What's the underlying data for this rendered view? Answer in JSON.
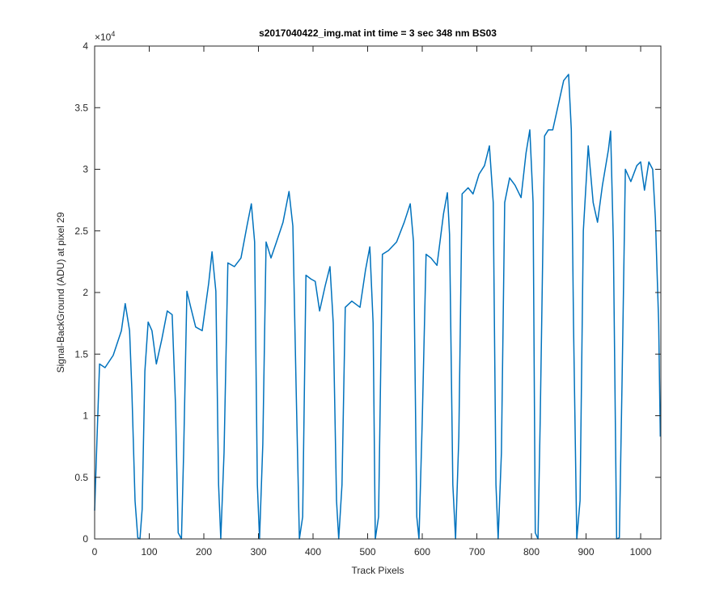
{
  "chart_data": {
    "type": "line",
    "title": "s2017040422_img.mat int time = 3 sec  348 nm BS03",
    "xlabel": "Track Pixels",
    "ylabel": "Signal-BackGround (ADU) at pixel 29",
    "y_exponent_base": "×10",
    "y_exponent": "4",
    "xlim": [
      0,
      1037
    ],
    "ylim": [
      0,
      4
    ],
    "xticks": [
      0,
      100,
      200,
      300,
      400,
      500,
      600,
      700,
      800,
      900,
      1000
    ],
    "yticks": [
      0,
      0.5,
      1,
      1.5,
      2,
      2.5,
      3,
      3.5,
      4
    ],
    "grid": false,
    "box": true,
    "series": [
      {
        "color": "#0072bd",
        "x": [
          0,
          4,
          9,
          19,
          34,
          49,
          56,
          64,
          68,
          74,
          79,
          83,
          87,
          92,
          98,
          105,
          113,
          123,
          133,
          142,
          148,
          153,
          159,
          163,
          169,
          176,
          185,
          197,
          209,
          215,
          222,
          227,
          231,
          237,
          244,
          256,
          268,
          279,
          287,
          293,
          298,
          302,
          308,
          314,
          323,
          333,
          345,
          356,
          363,
          369,
          375,
          381,
          387,
          396,
          404,
          412,
          422,
          431,
          437,
          443,
          447,
          453,
          459,
          471,
          486,
          496,
          504,
          510,
          514,
          520,
          527,
          538,
          553,
          567,
          578,
          584,
          590,
          594,
          600,
          607,
          616,
          627,
          639,
          646,
          650,
          656,
          661,
          667,
          673,
          684,
          693,
          704,
          714,
          723,
          730,
          735,
          739,
          745,
          751,
          760,
          770,
          781,
          790,
          797,
          803,
          807,
          812,
          816,
          824,
          831,
          839,
          849,
          859,
          868,
          873,
          877,
          883,
          889,
          895,
          904,
          913,
          921,
          930,
          941,
          945,
          950,
          956,
          961,
          966,
          972,
          982,
          993,
          1000,
          1007,
          1015,
          1022,
          1027,
          1033,
          1036
        ],
        "values": [
          0.23,
          0.77,
          1.42,
          1.39,
          1.49,
          1.69,
          1.91,
          1.69,
          1.23,
          0.31,
          0.01,
          0,
          0.24,
          1.36,
          1.76,
          1.69,
          1.42,
          1.62,
          1.85,
          1.82,
          1.1,
          0.05,
          0,
          0.7,
          2.01,
          1.88,
          1.72,
          1.69,
          2.08,
          2.33,
          2.01,
          0.44,
          0,
          0.7,
          2.24,
          2.21,
          2.28,
          2.54,
          2.72,
          2.41,
          0.44,
          0,
          0.77,
          2.41,
          2.28,
          2.41,
          2.57,
          2.82,
          2.54,
          1.23,
          0,
          0.18,
          2.14,
          2.11,
          2.09,
          1.85,
          2.05,
          2.21,
          1.75,
          0.31,
          0,
          0.44,
          1.88,
          1.93,
          1.88,
          2.18,
          2.37,
          1.75,
          0,
          0.18,
          2.31,
          2.34,
          2.41,
          2.57,
          2.72,
          2.41,
          0.18,
          0,
          0.96,
          2.31,
          2.28,
          2.22,
          2.64,
          2.81,
          2.47,
          0.44,
          0,
          0.83,
          2.8,
          2.85,
          2.8,
          2.96,
          3.03,
          3.19,
          2.73,
          0.44,
          0,
          0.7,
          2.73,
          2.93,
          2.87,
          2.77,
          3.13,
          3.32,
          2.73,
          0.05,
          0,
          0.96,
          3.27,
          3.32,
          3.32,
          3.52,
          3.72,
          3.77,
          3.32,
          1.75,
          0,
          0.31,
          2.5,
          3.19,
          2.73,
          2.57,
          2.87,
          3.16,
          3.31,
          2.41,
          0,
          0.01,
          1.29,
          3.0,
          2.9,
          3.03,
          3.06,
          2.83,
          3.06,
          3.0,
          2.6,
          1.75,
          0.83
        ]
      }
    ]
  }
}
